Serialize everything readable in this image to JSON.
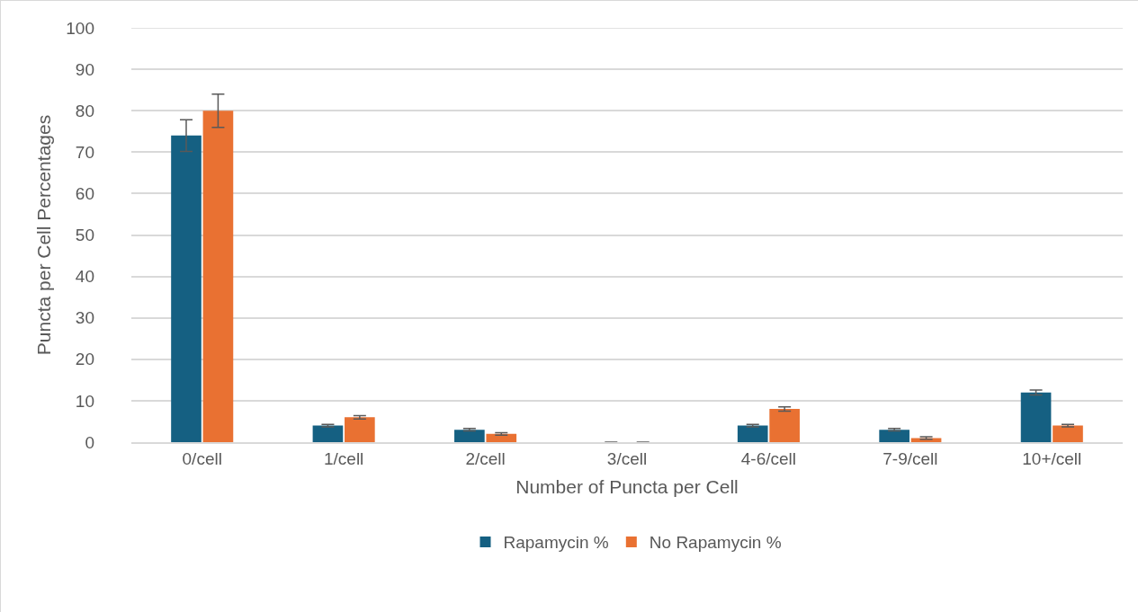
{
  "chart_data": {
    "type": "bar",
    "xlabel": "Number of Puncta per Cell",
    "ylabel": "Puncta per Cell Percentages",
    "categories": [
      "0/cell",
      "1/cell",
      "2/cell",
      "3/cell",
      "4-6/cell",
      "7-9/cell",
      "10+/cell"
    ],
    "series": [
      {
        "name": "Rapamycin %",
        "color": "#156082",
        "values": [
          74,
          4,
          3,
          0,
          4,
          3,
          12
        ],
        "errors": [
          3.8,
          0.3,
          0.3,
          0,
          0.3,
          0.3,
          0.6
        ]
      },
      {
        "name": "No Rapamycin %",
        "color": "#e97132",
        "values": [
          80,
          6,
          2,
          0,
          8,
          1,
          4
        ],
        "errors": [
          4,
          0.4,
          0.3,
          0,
          0.5,
          0.3,
          0.3
        ]
      }
    ],
    "ylim": [
      0,
      100
    ],
    "yticks": [
      0,
      10,
      20,
      30,
      40,
      50,
      60,
      70,
      80,
      90,
      100
    ],
    "grid": "y",
    "legend": "bottom"
  }
}
